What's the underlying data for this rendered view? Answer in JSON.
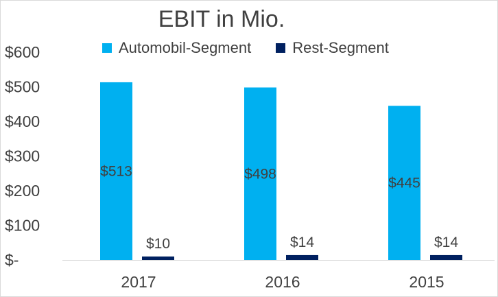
{
  "chart_data": {
    "type": "bar",
    "title": "EBIT in Mio.",
    "categories": [
      "2017",
      "2016",
      "2015"
    ],
    "series": [
      {
        "name": "Automobil-Segment",
        "color": "#00b0f0",
        "values": [
          513,
          498,
          445
        ],
        "labels": [
          "$513",
          "$498",
          "$445"
        ]
      },
      {
        "name": "Rest-Segment",
        "color": "#002060",
        "values": [
          10,
          14,
          14
        ],
        "labels": [
          "$10",
          "$14",
          "$14"
        ]
      }
    ],
    "ylim": [
      0,
      600
    ],
    "y_ticks": [
      0,
      100,
      200,
      300,
      400,
      500,
      600
    ],
    "y_tick_labels": [
      "$-",
      "$100",
      "$200",
      "$300",
      "$400",
      "$500",
      "$600"
    ],
    "xlabel": "",
    "ylabel": "",
    "grid": false,
    "legend": "top"
  }
}
